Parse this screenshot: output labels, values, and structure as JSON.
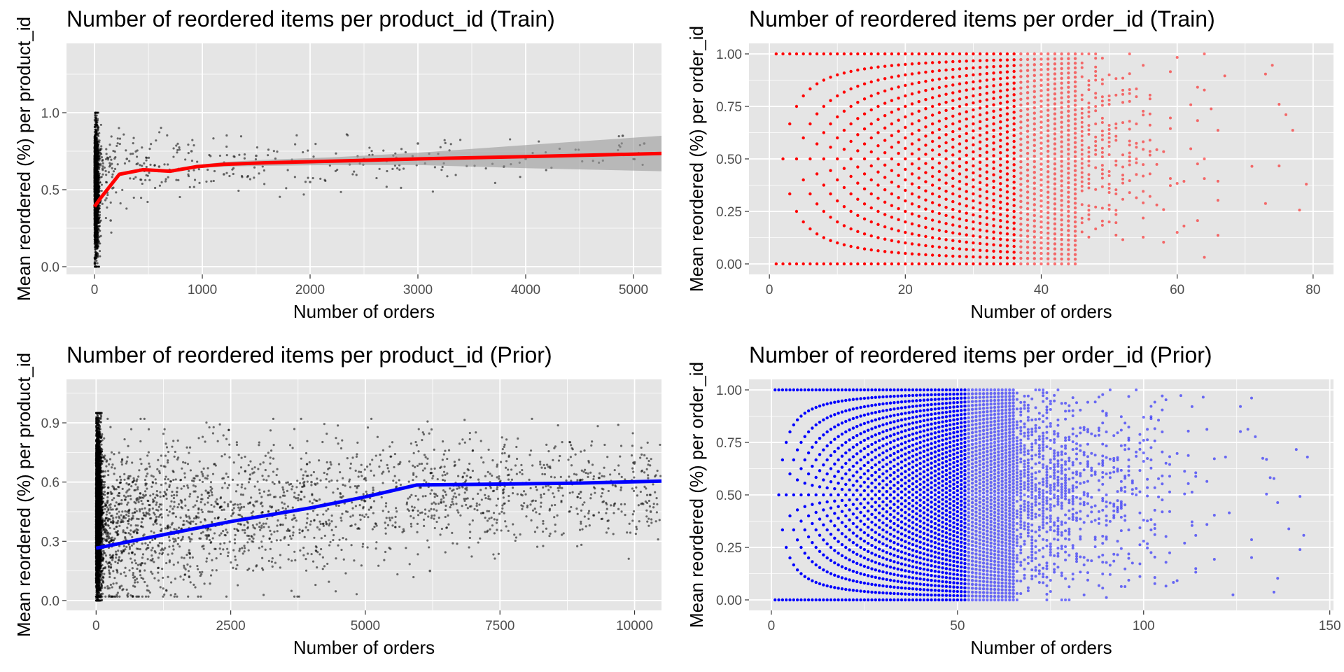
{
  "figure": {
    "background": "#ffffff",
    "panel_background": "#e5e5e5",
    "grid_color": "#ffffff"
  },
  "chart_data": [
    {
      "type": "scatter",
      "title": "Number of reordered items per product_id (Train)",
      "xlabel": "Number of orders",
      "ylabel": "Mean reordered (%) per product_id",
      "xlim": [
        -260,
        5260
      ],
      "ylim": [
        -0.05,
        1.45
      ],
      "x_ticks": [
        0,
        1000,
        2000,
        3000,
        4000,
        5000
      ],
      "x_tick_labels": [
        "0",
        "1000",
        "2000",
        "3000",
        "4000",
        "5000"
      ],
      "y_ticks": [
        0.0,
        0.5,
        1.0
      ],
      "y_tick_labels": [
        "0.0",
        "0.5",
        "1.0"
      ],
      "point_color": "#000000",
      "grid": true,
      "series": [
        {
          "kind": "points",
          "color": "#000000",
          "description_of_distribution": "dense vertical band near x=0 spanning 0 to 1; sparse points for larger x around 0.55-0.8",
          "sample_points": [
            [
              5,
              0.05
            ],
            [
              10,
              0.95
            ],
            [
              150,
              0.3
            ],
            [
              300,
              0.7
            ],
            [
              600,
              0.65
            ],
            [
              900,
              0.75
            ],
            [
              1200,
              0.6
            ],
            [
              1500,
              0.72
            ],
            [
              2000,
              0.55
            ],
            [
              2500,
              0.7
            ],
            [
              3000,
              0.8
            ],
            [
              4000,
              0.7
            ],
            [
              4900,
              0.85
            ],
            [
              5100,
              0.8
            ]
          ]
        },
        {
          "kind": "smooth",
          "color": "#ff0000",
          "x": [
            0,
            50,
            230,
            450,
            700,
            950,
            1200,
            1600,
            2200,
            3000,
            4000,
            5260
          ],
          "y": [
            0.39,
            0.44,
            0.6,
            0.63,
            0.62,
            0.65,
            0.665,
            0.675,
            0.685,
            0.7,
            0.715,
            0.735
          ],
          "ci_low": [
            0.39,
            0.44,
            0.6,
            0.62,
            0.61,
            0.64,
            0.65,
            0.655,
            0.66,
            0.66,
            0.64,
            0.62
          ],
          "ci_high": [
            0.39,
            0.44,
            0.6,
            0.64,
            0.63,
            0.66,
            0.68,
            0.695,
            0.71,
            0.74,
            0.79,
            0.85
          ],
          "ci_color": "#999999"
        }
      ]
    },
    {
      "type": "scatter",
      "title": "Number of reordered items per order_id (Train)",
      "xlabel": "Number of orders",
      "ylabel": "Mean reordered (%) per order_id",
      "xlim": [
        -3,
        83
      ],
      "ylim": [
        -0.05,
        1.05
      ],
      "x_ticks": [
        0,
        20,
        40,
        60,
        80
      ],
      "x_tick_labels": [
        "0",
        "20",
        "40",
        "60",
        "80"
      ],
      "y_ticks": [
        0.0,
        0.25,
        0.5,
        0.75,
        1.0
      ],
      "y_tick_labels": [
        "0.00",
        "0.25",
        "0.50",
        "0.75",
        "1.00"
      ],
      "grid": true,
      "series": [
        {
          "kind": "fraction-lattice",
          "color": "#ff0000",
          "description_of_distribution": "points at y = k/n for n = 1..80, dense up to ~45, sparse beyond",
          "n_max": 80,
          "dense_until": 45
        }
      ]
    },
    {
      "type": "scatter",
      "title": "Number of reordered items per product_id (Prior)",
      "xlabel": "Number of orders",
      "ylabel": "Mean reordered (%) per product_id",
      "xlim": [
        -550,
        10500
      ],
      "ylim": [
        -0.05,
        1.12
      ],
      "x_ticks": [
        0,
        2500,
        5000,
        7500,
        10000
      ],
      "x_tick_labels": [
        "0",
        "2500",
        "5000",
        "7500",
        "10000"
      ],
      "y_ticks": [
        0.0,
        0.3,
        0.6,
        0.9
      ],
      "y_tick_labels": [
        "0.0",
        "0.3",
        "0.6",
        "0.9"
      ],
      "grid": true,
      "series": [
        {
          "kind": "points",
          "color": "#000000",
          "description_of_distribution": "very dense vertical band near x=0 spanning 0 to ~0.95; cloud thinning out toward larger x centered around 0.5",
          "sample_points": [
            [
              20,
              0.05
            ],
            [
              30,
              0.9
            ],
            [
              500,
              0.4
            ],
            [
              1500,
              0.55
            ],
            [
              2500,
              0.5
            ],
            [
              4000,
              0.6
            ],
            [
              5000,
              0.62
            ],
            [
              6200,
              0.15
            ],
            [
              7500,
              0.6
            ],
            [
              9000,
              0.55
            ],
            [
              10000,
              0.7
            ],
            [
              10300,
              0.45
            ]
          ]
        },
        {
          "kind": "smooth",
          "color": "#0000ff",
          "x": [
            0,
            1000,
            2500,
            4000,
            5000,
            5950,
            7500,
            9000,
            10500
          ],
          "y": [
            0.265,
            0.32,
            0.4,
            0.47,
            0.525,
            0.585,
            0.59,
            0.595,
            0.605
          ]
        }
      ]
    },
    {
      "type": "scatter",
      "title": "Number of reordered items per order_id (Prior)",
      "xlabel": "Number of orders",
      "ylabel": "Mean reordered (%) per order_id",
      "xlim": [
        -6,
        151
      ],
      "ylim": [
        -0.05,
        1.05
      ],
      "x_ticks": [
        0,
        50,
        100,
        150
      ],
      "x_tick_labels": [
        "0",
        "50",
        "100",
        "150"
      ],
      "y_ticks": [
        0.0,
        0.25,
        0.5,
        0.75,
        1.0
      ],
      "y_tick_labels": [
        "0.00",
        "0.25",
        "0.50",
        "0.75",
        "1.00"
      ],
      "grid": true,
      "series": [
        {
          "kind": "fraction-lattice",
          "color": "#0000ff",
          "description_of_distribution": "points at y = k/n for n = 1..~145, dense up to ~65, sparse beyond",
          "n_max": 145,
          "dense_until": 65
        }
      ]
    }
  ]
}
